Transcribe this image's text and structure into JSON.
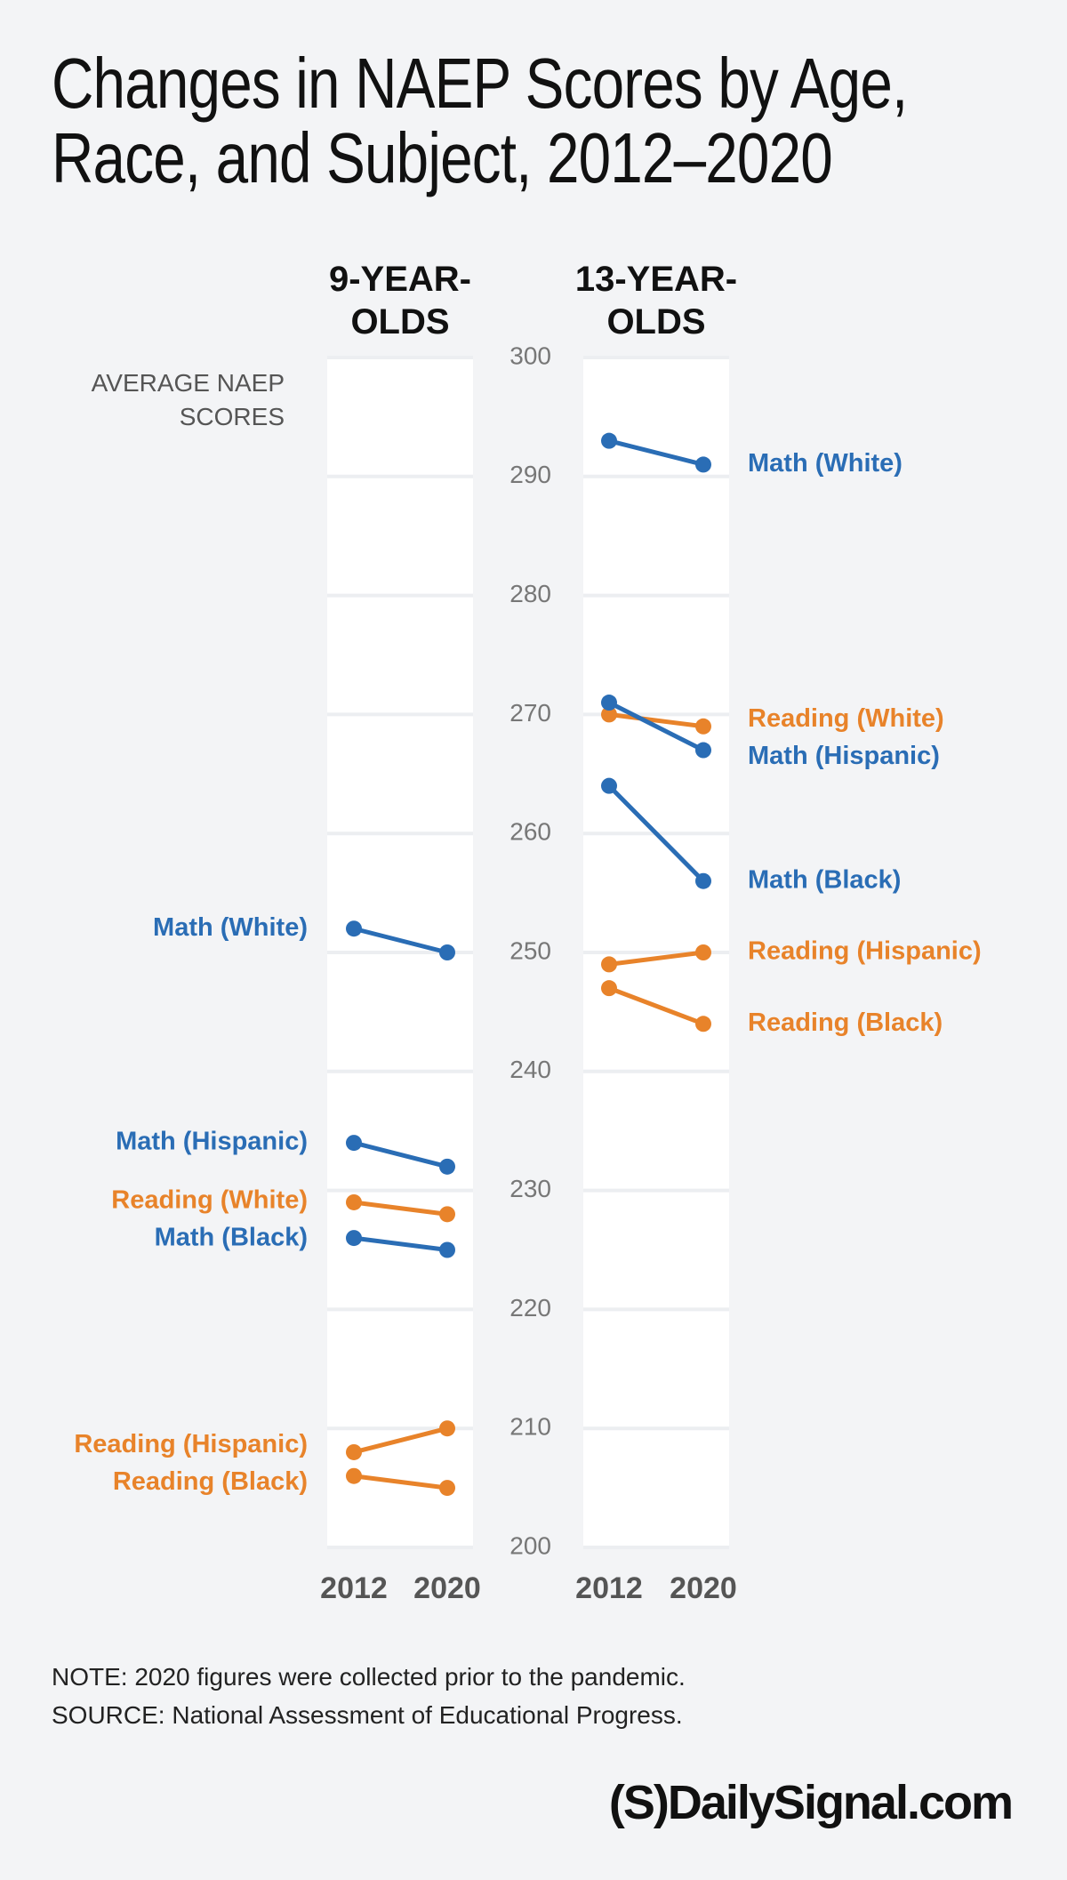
{
  "title": "Changes in NAEP Scores by Age, Race, and Subject, 2012–2020",
  "y_label": "AVERAGE NAEP SCORES",
  "note": "NOTE: 2020 figures were collected prior to the pandemic.",
  "source": "SOURCE: National Assessment of Educational Progress.",
  "logo": "(S)DailySignal.com",
  "chart_data": [
    {
      "type": "line",
      "title": "9-YEAR-OLDS",
      "categories": [
        "2012",
        "2020"
      ],
      "series": [
        {
          "name": "Math (White)",
          "color": "#2a6db5",
          "values": [
            252,
            250
          ]
        },
        {
          "name": "Math (Hispanic)",
          "color": "#2a6db5",
          "values": [
            234,
            232
          ]
        },
        {
          "name": "Reading (White)",
          "color": "#e8832a",
          "values": [
            229,
            228
          ]
        },
        {
          "name": "Math (Black)",
          "color": "#2a6db5",
          "values": [
            226,
            225
          ]
        },
        {
          "name": "Reading (Hispanic)",
          "color": "#e8832a",
          "values": [
            208,
            210
          ]
        },
        {
          "name": "Reading (Black)",
          "color": "#e8832a",
          "values": [
            206,
            205
          ]
        }
      ],
      "ylim": [
        200,
        300
      ],
      "yticks": [
        200,
        210,
        220,
        230,
        240,
        250,
        260,
        270,
        280,
        290,
        300
      ],
      "grid": true
    },
    {
      "type": "line",
      "title": "13-YEAR-OLDS",
      "categories": [
        "2012",
        "2020"
      ],
      "series": [
        {
          "name": "Math (White)",
          "color": "#2a6db5",
          "values": [
            293,
            291
          ]
        },
        {
          "name": "Reading (White)",
          "color": "#e8832a",
          "values": [
            270,
            269
          ]
        },
        {
          "name": "Math (Hispanic)",
          "color": "#2a6db5",
          "values": [
            271,
            267
          ]
        },
        {
          "name": "Math (Black)",
          "color": "#2a6db5",
          "values": [
            264,
            256
          ]
        },
        {
          "name": "Reading (Hispanic)",
          "color": "#e8832a",
          "values": [
            249,
            250
          ]
        },
        {
          "name": "Reading (Black)",
          "color": "#e8832a",
          "values": [
            247,
            244
          ]
        }
      ],
      "ylim": [
        200,
        300
      ],
      "yticks": [
        200,
        210,
        220,
        230,
        240,
        250,
        260,
        270,
        280,
        290,
        300
      ],
      "grid": true
    }
  ]
}
